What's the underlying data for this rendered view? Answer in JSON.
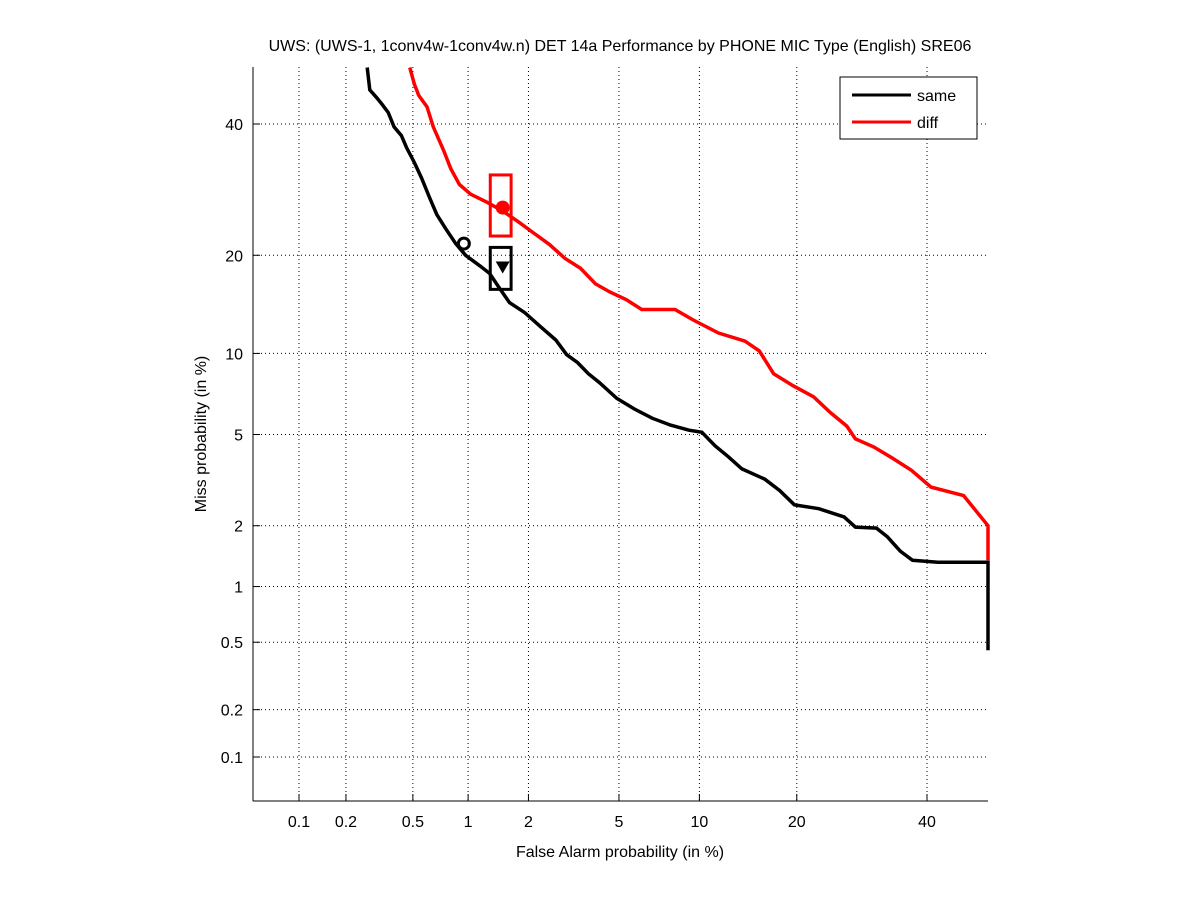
{
  "chart_data": {
    "type": "line",
    "title": "UWS: (UWS-1, 1conv4w-1conv4w.n) DET 14a Performance by PHONE MIC Type (English) SRE06",
    "xlabel": "False Alarm probability (in %)",
    "ylabel": "Miss probability (in %)",
    "xscale": "normal-deviate",
    "yscale": "normal-deviate",
    "xlim": [
      0.05,
      50
    ],
    "ylim": [
      0.05,
      50
    ],
    "xticks": [
      0.1,
      0.2,
      0.5,
      1,
      2,
      5,
      10,
      20,
      40
    ],
    "xtick_labels": [
      "0.1",
      "0.2",
      "0.5",
      "1",
      "2",
      "5",
      "10",
      "20",
      "40"
    ],
    "yticks": [
      0.1,
      0.2,
      0.5,
      1,
      2,
      5,
      10,
      20,
      40
    ],
    "ytick_labels": [
      "0.1",
      "0.2",
      "0.5",
      "1",
      "2",
      "5",
      "10",
      "20",
      "40"
    ],
    "grid": true,
    "legend_position": "top-right",
    "series": [
      {
        "name": "same",
        "color": "#000000",
        "points": [
          [
            0.27,
            50
          ],
          [
            0.28,
            46
          ],
          [
            0.31,
            44.5
          ],
          [
            0.33,
            43.5
          ],
          [
            0.36,
            42
          ],
          [
            0.39,
            39.5
          ],
          [
            0.43,
            38
          ],
          [
            0.46,
            36
          ],
          [
            0.51,
            33.5
          ],
          [
            0.56,
            31
          ],
          [
            0.62,
            28
          ],
          [
            0.68,
            25.5
          ],
          [
            0.76,
            23.5
          ],
          [
            0.86,
            21.5
          ],
          [
            0.97,
            20
          ],
          [
            1.15,
            18.7
          ],
          [
            1.29,
            17.8
          ],
          [
            1.45,
            16.1
          ],
          [
            1.62,
            14.6
          ],
          [
            1.92,
            13.6
          ],
          [
            2.27,
            12.3
          ],
          [
            2.68,
            11.1
          ],
          [
            3.0,
            9.9
          ],
          [
            3.35,
            9.3
          ],
          [
            3.73,
            8.5
          ],
          [
            4.15,
            7.9
          ],
          [
            4.9,
            6.9
          ],
          [
            5.75,
            6.3
          ],
          [
            6.75,
            5.8
          ],
          [
            7.9,
            5.45
          ],
          [
            9.2,
            5.2
          ],
          [
            10.2,
            5.1
          ],
          [
            11.3,
            4.5
          ],
          [
            12.5,
            4.05
          ],
          [
            13.8,
            3.6
          ],
          [
            16.2,
            3.25
          ],
          [
            17.9,
            2.9
          ],
          [
            19.7,
            2.5
          ],
          [
            22.9,
            2.4
          ],
          [
            26.5,
            2.2
          ],
          [
            28.2,
            1.97
          ],
          [
            31.5,
            1.95
          ],
          [
            33.3,
            1.77
          ],
          [
            35.4,
            1.51
          ],
          [
            37.5,
            1.36
          ],
          [
            41.9,
            1.33
          ],
          [
            62,
            1.33
          ],
          [
            67,
            1.2
          ],
          [
            75,
            1.2
          ],
          [
            88,
            1.1
          ],
          [
            91,
            0.96
          ],
          [
            97,
            0.87
          ],
          [
            100,
            0.72
          ],
          [
            100,
            0.62
          ],
          [
            100,
            0.62
          ],
          [
            100,
            0.6
          ],
          [
            100,
            0.45
          ],
          [
            100,
            0.45
          ]
        ],
        "operating_points": {
          "actual_min_dcf_circle": [
            0.95,
            21.5
          ],
          "actual_dcf_triangle": [
            1.5,
            18.5
          ]
        },
        "confidence_box": {
          "fa_range": [
            1.3,
            1.65
          ],
          "miss_range": [
            16.0,
            21.0
          ]
        }
      },
      {
        "name": "diff",
        "color": "#ff0000",
        "points": [
          [
            0.48,
            50
          ],
          [
            0.51,
            47
          ],
          [
            0.54,
            45
          ],
          [
            0.6,
            43
          ],
          [
            0.65,
            39.5
          ],
          [
            0.74,
            35.5
          ],
          [
            0.81,
            32.5
          ],
          [
            0.9,
            30
          ],
          [
            1.03,
            28.5
          ],
          [
            1.25,
            27.3
          ],
          [
            1.5,
            26
          ],
          [
            1.8,
            24.4
          ],
          [
            2.12,
            22.9
          ],
          [
            2.5,
            21.4
          ],
          [
            2.95,
            19.6
          ],
          [
            3.45,
            18.4
          ],
          [
            4.0,
            16.6
          ],
          [
            4.6,
            15.7
          ],
          [
            5.35,
            14.9
          ],
          [
            6.15,
            13.9
          ],
          [
            8.2,
            13.9
          ],
          [
            9.5,
            12.9
          ],
          [
            11.6,
            11.7
          ],
          [
            14.1,
            11.0
          ],
          [
            15.6,
            10.2
          ],
          [
            17.2,
            8.5
          ],
          [
            19.5,
            7.7
          ],
          [
            22.2,
            7.0
          ],
          [
            24.5,
            6.1
          ],
          [
            26.9,
            5.4
          ],
          [
            28.2,
            4.8
          ],
          [
            31.1,
            4.45
          ],
          [
            34.1,
            4.0
          ],
          [
            37.3,
            3.55
          ],
          [
            40.7,
            3.0
          ],
          [
            46.5,
            2.75
          ],
          [
            53,
            2.0
          ],
          [
            57,
            1.87
          ],
          [
            61,
            1.66
          ],
          [
            63,
            1.36
          ],
          [
            100,
            1.36
          ]
        ],
        "operating_points": {
          "actual_min_dcf_circle": [
            1.5,
            26.5
          ],
          "actual_dcf_triangle": [
            1.5,
            26.5
          ]
        },
        "confidence_box": {
          "fa_range": [
            1.3,
            1.65
          ],
          "miss_range": [
            22.5,
            31.5
          ]
        }
      }
    ]
  }
}
